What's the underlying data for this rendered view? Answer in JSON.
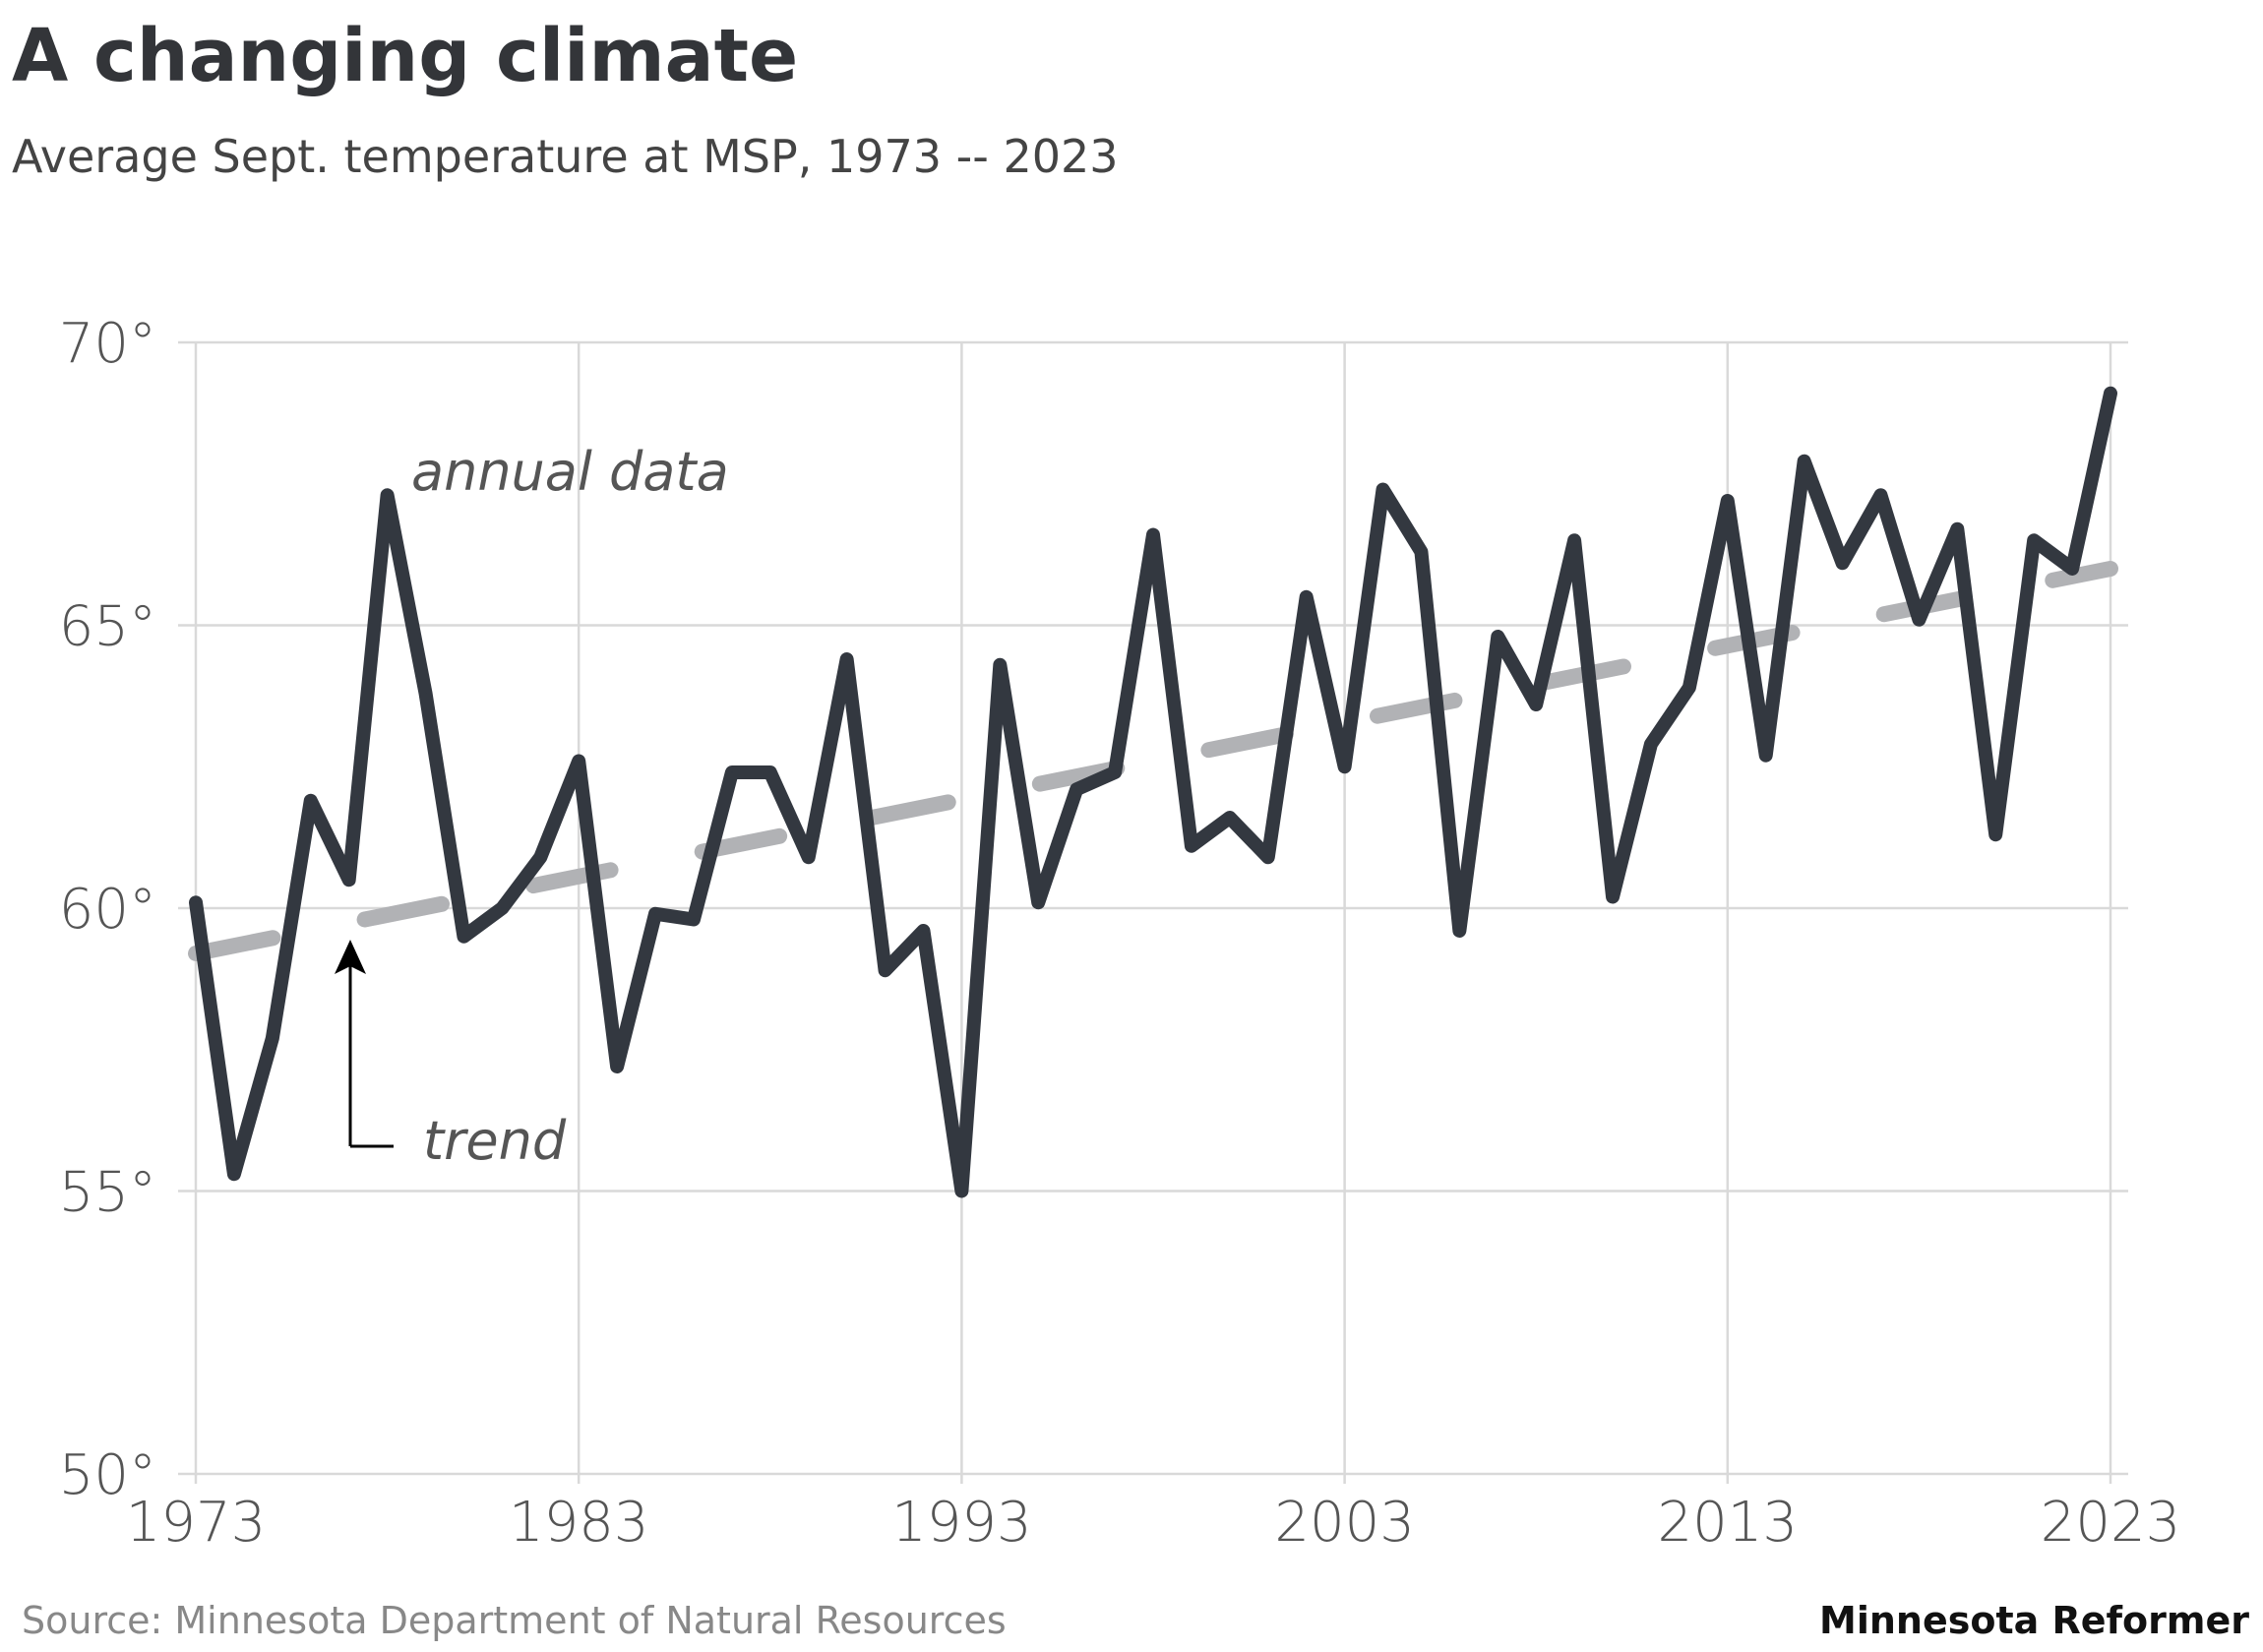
{
  "title": "A changing climate",
  "subtitle": "Average Sept. temperature at MSP, 1973 -- 2023",
  "source": "Source: Minnesota Department of Natural Resources",
  "brand": "Minnesota Reformer",
  "colors": {
    "line": "#333840",
    "trend": "#b1b2b5",
    "grid": "#d9d9d9",
    "text": "#555555"
  },
  "chart_data": {
    "type": "line",
    "title": "A changing climate",
    "subtitle": "Average Sept. temperature at MSP, 1973 -- 2023",
    "xlabel": "",
    "ylabel": "",
    "xlim": [
      1973,
      2023
    ],
    "ylim": [
      50,
      70
    ],
    "grid": true,
    "x_ticks": [
      1973,
      1983,
      1993,
      2003,
      2013,
      2023
    ],
    "x_tick_labels": [
      "1973",
      "1983",
      "1993",
      "2003",
      "2013",
      "2023"
    ],
    "y_ticks": [
      50,
      55,
      60,
      65,
      70
    ],
    "y_tick_labels": [
      "50°",
      "55°",
      "60°",
      "65°",
      "70°"
    ],
    "annotations": {
      "annual": "annual data",
      "trend": "trend"
    },
    "series": [
      {
        "key": "annual",
        "style": "solid",
        "x": [
          1973,
          1974,
          1975,
          1976,
          1977,
          1978,
          1979,
          1980,
          1981,
          1982,
          1983,
          1984,
          1985,
          1986,
          1987,
          1988,
          1989,
          1990,
          1991,
          1992,
          1993,
          1994,
          1995,
          1996,
          1997,
          1998,
          1999,
          2000,
          2001,
          2002,
          2003,
          2004,
          2005,
          2006,
          2007,
          2008,
          2009,
          2010,
          2011,
          2012,
          2013,
          2014,
          2015,
          2016,
          2017,
          2018,
          2019,
          2020,
          2021,
          2022,
          2023
        ],
        "values": [
          60.1,
          55.3,
          57.7,
          61.9,
          60.5,
          67.3,
          63.8,
          59.5,
          60.0,
          60.9,
          62.6,
          57.2,
          59.9,
          59.8,
          62.4,
          62.4,
          60.9,
          64.4,
          58.9,
          59.6,
          55.0,
          64.3,
          60.1,
          62.1,
          62.4,
          66.6,
          61.1,
          61.6,
          60.9,
          65.5,
          62.5,
          67.4,
          66.3,
          59.6,
          64.8,
          63.6,
          66.5,
          60.2,
          62.9,
          63.9,
          67.2,
          62.7,
          67.9,
          66.1,
          67.3,
          65.1,
          66.7,
          61.3,
          66.5,
          66.0,
          69.1
        ]
      },
      {
        "key": "trend",
        "style": "dashed",
        "x": [
          1973,
          2023
        ],
        "values": [
          59.2,
          66.0
        ]
      }
    ]
  }
}
